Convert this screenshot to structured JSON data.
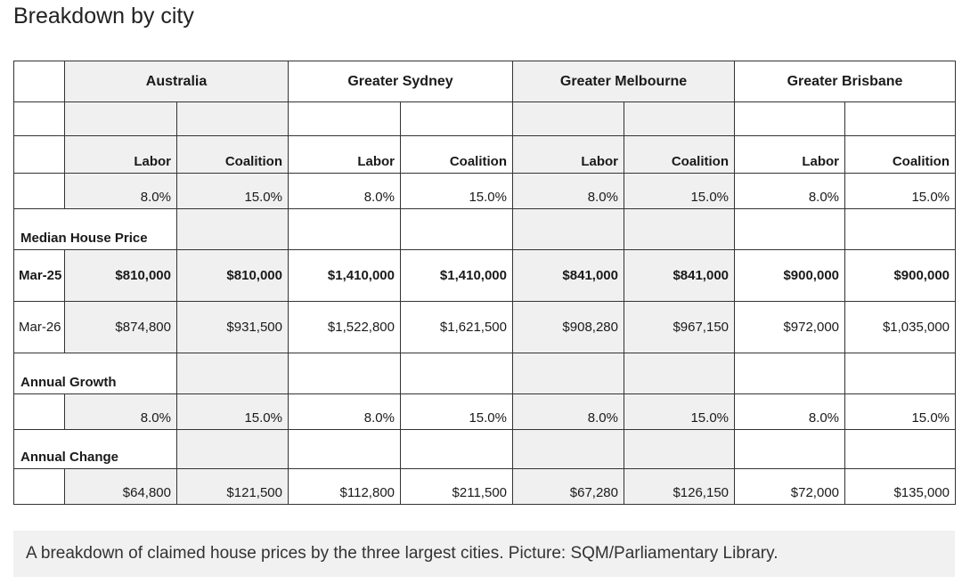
{
  "title": "Breakdown by city",
  "caption": "A breakdown of claimed house prices by the three largest cities. Picture: SQM/Parliamentary Library.",
  "table": {
    "cities": [
      "Australia",
      "Greater Sydney",
      "Greater Melbourne",
      "Greater Brisbane"
    ],
    "parties": [
      "Labor",
      "Coalition"
    ],
    "deposit_rates": [
      "8.0%",
      "15.0%",
      "8.0%",
      "15.0%",
      "8.0%",
      "15.0%",
      "8.0%",
      "15.0%"
    ],
    "sections": {
      "median": "Median House Price",
      "growth": "Annual Growth",
      "change": "Annual Change"
    },
    "rows": {
      "mar25": {
        "label": "Mar-25",
        "values": [
          "$810,000",
          "$810,000",
          "$1,410,000",
          "$1,410,000",
          "$841,000",
          "$841,000",
          "$900,000",
          "$900,000"
        ]
      },
      "mar26": {
        "label": "Mar-26",
        "values": [
          "$874,800",
          "$931,500",
          "$1,522,800",
          "$1,621,500",
          "$908,280",
          "$967,150",
          "$972,000",
          "$1,035,000"
        ]
      }
    },
    "growth": [
      "8.0%",
      "15.0%",
      "8.0%",
      "15.0%",
      "8.0%",
      "15.0%",
      "8.0%",
      "15.0%"
    ],
    "change": [
      "$64,800",
      "$121,500",
      "$112,800",
      "$211,500",
      "$67,280",
      "$126,150",
      "$72,000",
      "$135,000"
    ]
  }
}
